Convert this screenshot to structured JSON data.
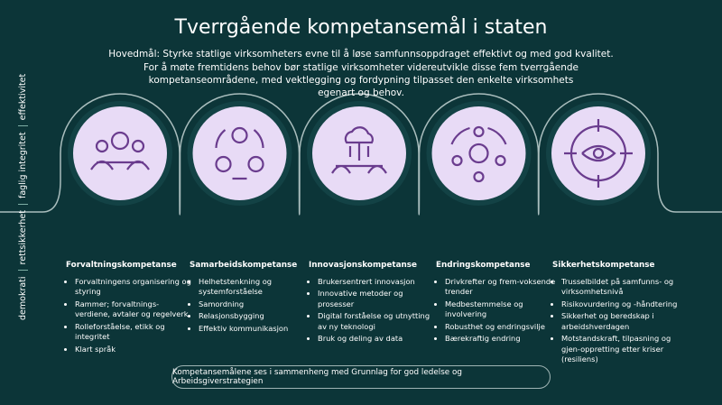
{
  "header": {
    "title": "Tverrgående kompetansemål i staten",
    "goal": "Hovedmål: Styrke statlige virksomheters evne til å løse samfunnsoppdraget effektivt og med god kvalitet.",
    "intro": "For å møte fremtidens behov bør statlige virksomheter videreutvikle disse fem tverrgående kompetanseområdene, med vektlegging og fordypning tilpasset den enkelte virksomhets egenart og behov."
  },
  "side_labels": [
    "demokrati",
    "rettsikkerhet",
    "faglig integritet",
    "effektivitet"
  ],
  "areas": [
    {
      "title": "Forvaltningskompetanse",
      "items": [
        "Forvaltningens organisering og styring",
        "Rammer; forvaltnings-verdiene, avtaler og regelverk",
        "Rolleforståelse, etikk og integritet",
        "Klart språk"
      ]
    },
    {
      "title": "Samarbeidskompetanse",
      "items": [
        "Helhetstenkning og systemforståelse",
        "Samordning",
        "Relasjonsbygging",
        "Effektiv kommunikasjon"
      ]
    },
    {
      "title": "Innovasjonskompetanse",
      "items": [
        "Brukersentrert innovasjon",
        "Innovative metoder og prosesser",
        "Digital forståelse og utnytting av ny teknologi",
        "Bruk og deling av data"
      ]
    },
    {
      "title": "Endringskompetanse",
      "items": [
        "Drivkrefter og frem-voksende trender",
        "Medbestemmelse og involvering",
        "Robusthet og endringsvilje",
        "Bærekraftig endring"
      ]
    },
    {
      "title": "Sikkerhetskompetanse",
      "items": [
        "Trusselbildet på samfunns- og virksomhetsnivå",
        "Risikovurdering og -håndtering",
        "Sikkerhet og beredskap i arbeidshverdagen",
        "Motstandskraft, tilpasning og gjen-oppretting etter kriser (resiliens)"
      ]
    }
  ],
  "footer": "Kompetansemålene ses i sammenheng med Grunnlag for god ledelse og Arbeidsgiverstrategien"
}
